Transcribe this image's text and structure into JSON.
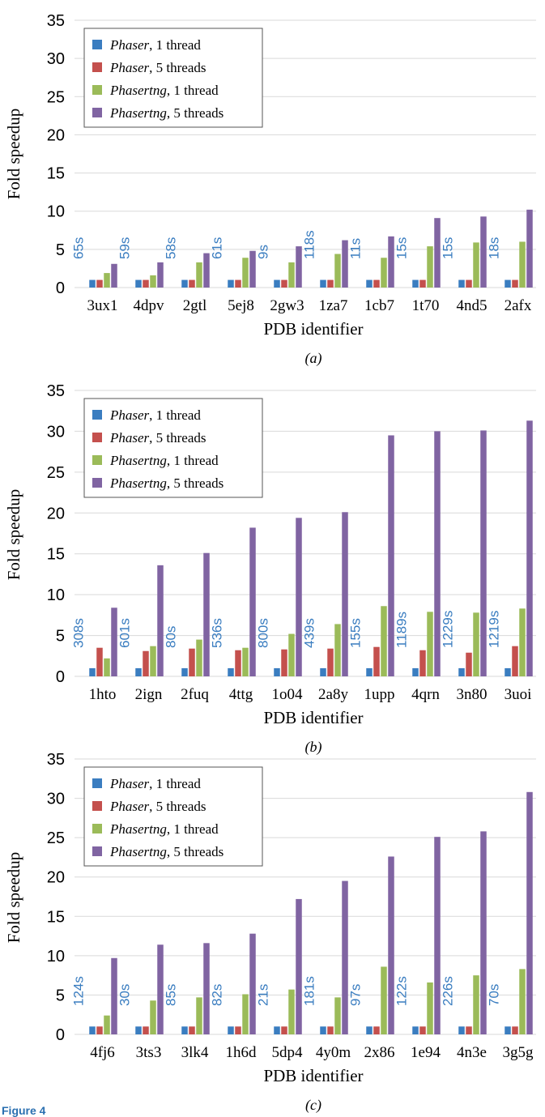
{
  "colors": {
    "phaser_1": "#3a7dc0",
    "phaser_5": "#c4504d",
    "phasertng_1": "#9bbb59",
    "phasertng_5": "#8064a2",
    "annotation": "#3a7dc0",
    "grid": "#d9d9d9"
  },
  "legend": [
    {
      "name": "Phaser",
      "suffix": ", 1 thread"
    },
    {
      "name": "Phaser",
      "suffix": ", 5 threads"
    },
    {
      "name": "Phasertng",
      "suffix": ", 1 thread"
    },
    {
      "name": "Phasertng",
      "suffix": ", 5 threads"
    }
  ],
  "figure_label": "Figure 4",
  "chart_data": [
    {
      "type": "bar",
      "caption": "(a)",
      "xlabel": "PDB identifier",
      "ylabel": "Fold speedup",
      "ylim": [
        0,
        35
      ],
      "yticks": [
        0,
        5,
        10,
        15,
        20,
        25,
        30,
        35
      ],
      "grid": true,
      "legend_position": "top-left",
      "categories": [
        "3ux1",
        "4dpv",
        "2gtl",
        "5ej8",
        "2gw3",
        "1za7",
        "1cb7",
        "1t70",
        "4nd5",
        "2afx"
      ],
      "annotations": [
        "65s",
        "59s",
        "58s",
        "61s",
        "9s",
        "118s",
        "11s",
        "15s",
        "15s",
        "18s"
      ],
      "series": [
        {
          "name": "Phaser, 1 thread",
          "values": [
            1,
            1,
            1,
            1,
            1,
            1,
            1,
            1,
            1,
            1
          ]
        },
        {
          "name": "Phaser, 5 threads",
          "values": [
            1,
            1,
            1,
            1,
            1,
            1,
            1,
            1,
            1,
            1
          ]
        },
        {
          "name": "Phasertng, 1 thread",
          "values": [
            1.9,
            1.6,
            3.3,
            3.9,
            3.3,
            4.4,
            3.9,
            5.4,
            5.9,
            6.0
          ]
        },
        {
          "name": "Phasertng, 5 threads",
          "values": [
            3.1,
            3.3,
            4.5,
            4.8,
            5.4,
            6.2,
            6.7,
            9.1,
            9.3,
            10.2
          ]
        }
      ]
    },
    {
      "type": "bar",
      "caption": "(b)",
      "xlabel": "PDB identifier",
      "ylabel": "Fold speedup",
      "ylim": [
        0,
        35
      ],
      "yticks": [
        0,
        5,
        10,
        15,
        20,
        25,
        30,
        35
      ],
      "grid": true,
      "legend_position": "top-left",
      "categories": [
        "1hto",
        "2ign",
        "2fuq",
        "4ttg",
        "1o04",
        "2a8y",
        "1upp",
        "4qrn",
        "3n80",
        "3uoi"
      ],
      "annotations": [
        "308s",
        "601s",
        "80s",
        "536s",
        "800s",
        "439s",
        "155s",
        "1189s",
        "1229s",
        "1219s"
      ],
      "series": [
        {
          "name": "Phaser, 1 thread",
          "values": [
            1,
            1,
            1,
            1,
            1,
            1,
            1,
            1,
            1,
            1
          ]
        },
        {
          "name": "Phaser, 5 threads",
          "values": [
            3.5,
            3.1,
            3.4,
            3.2,
            3.3,
            3.4,
            3.6,
            3.2,
            2.9,
            3.7
          ]
        },
        {
          "name": "Phasertng, 1 thread",
          "values": [
            2.2,
            3.7,
            4.5,
            3.5,
            5.2,
            6.4,
            8.6,
            7.9,
            7.8,
            8.3
          ]
        },
        {
          "name": "Phasertng, 5 threads",
          "values": [
            8.4,
            13.6,
            15.1,
            18.2,
            19.4,
            20.1,
            29.5,
            30.0,
            30.1,
            31.3
          ]
        }
      ]
    },
    {
      "type": "bar",
      "caption": "(c)",
      "xlabel": "PDB identifier",
      "ylabel": "Fold speedup",
      "ylim": [
        0,
        35
      ],
      "yticks": [
        0,
        5,
        10,
        15,
        20,
        25,
        30,
        35
      ],
      "grid": true,
      "legend_position": "top-left",
      "categories": [
        "4fj6",
        "3ts3",
        "3lk4",
        "1h6d",
        "5dp4",
        "4y0m",
        "2x86",
        "1e94",
        "4n3e",
        "3g5g"
      ],
      "annotations": [
        "124s",
        "30s",
        "85s",
        "82s",
        "21s",
        "181s",
        "97s",
        "122s",
        "226s",
        "70s"
      ],
      "series": [
        {
          "name": "Phaser, 1 thread",
          "values": [
            1,
            1,
            1,
            1,
            1,
            1,
            1,
            1,
            1,
            1
          ]
        },
        {
          "name": "Phaser, 5 threads",
          "values": [
            1,
            1,
            1,
            1,
            1,
            1,
            1,
            1,
            1,
            1
          ]
        },
        {
          "name": "Phasertng, 1 thread",
          "values": [
            2.4,
            4.3,
            4.7,
            5.1,
            5.7,
            4.7,
            8.6,
            6.6,
            7.5,
            8.3
          ]
        },
        {
          "name": "Phasertng, 5 threads",
          "values": [
            9.7,
            11.4,
            11.6,
            12.8,
            17.2,
            19.5,
            22.6,
            25.1,
            25.8,
            30.8
          ]
        }
      ]
    }
  ]
}
